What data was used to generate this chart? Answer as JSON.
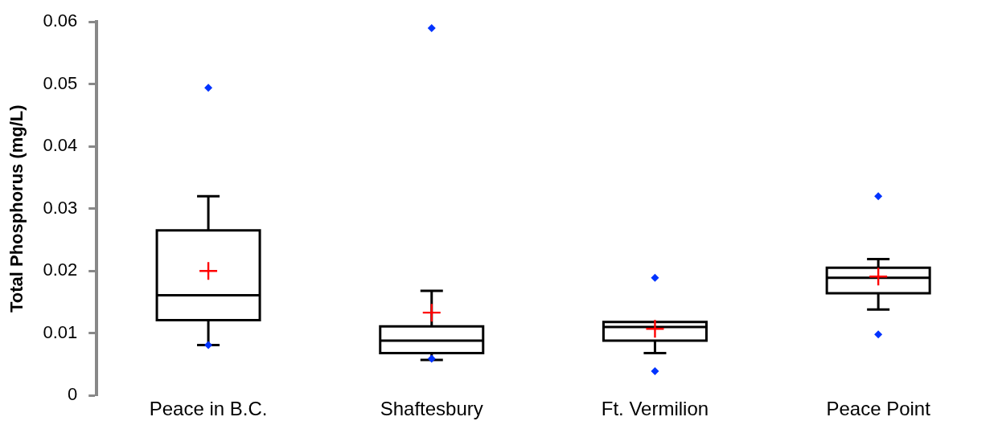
{
  "chart_data": {
    "type": "box",
    "ylabel": "Total Phosphorus (mg/L)",
    "categories": [
      "Peace in B.C.",
      "Shaftesbury",
      "Ft. Vermilion",
      "Peace Point"
    ],
    "boxes": [
      {
        "low": 0.0081,
        "q1": 0.0121,
        "median": 0.0161,
        "q3": 0.0265,
        "high": 0.032,
        "mean": 0.02,
        "outliers": [
          0.0494,
          0.0081
        ]
      },
      {
        "low": 0.0057,
        "q1": 0.0068,
        "median": 0.0088,
        "q3": 0.0111,
        "high": 0.0168,
        "mean": 0.0133,
        "outliers": [
          0.059,
          0.0059
        ]
      },
      {
        "low": 0.0068,
        "q1": 0.0088,
        "median": 0.011,
        "q3": 0.0118,
        "high": 0.0118,
        "mean": 0.0107,
        "outliers": [
          0.0189,
          0.0039
        ]
      },
      {
        "low": 0.0138,
        "q1": 0.0164,
        "median": 0.0189,
        "q3": 0.0205,
        "high": 0.0219,
        "mean": 0.0191,
        "outliers": [
          0.032,
          0.0098
        ]
      }
    ],
    "ylim": [
      0,
      0.06
    ],
    "yticks": [
      0,
      0.01,
      0.02,
      0.03,
      0.04,
      0.05,
      0.06
    ],
    "grid": false,
    "marker": "diamond"
  }
}
